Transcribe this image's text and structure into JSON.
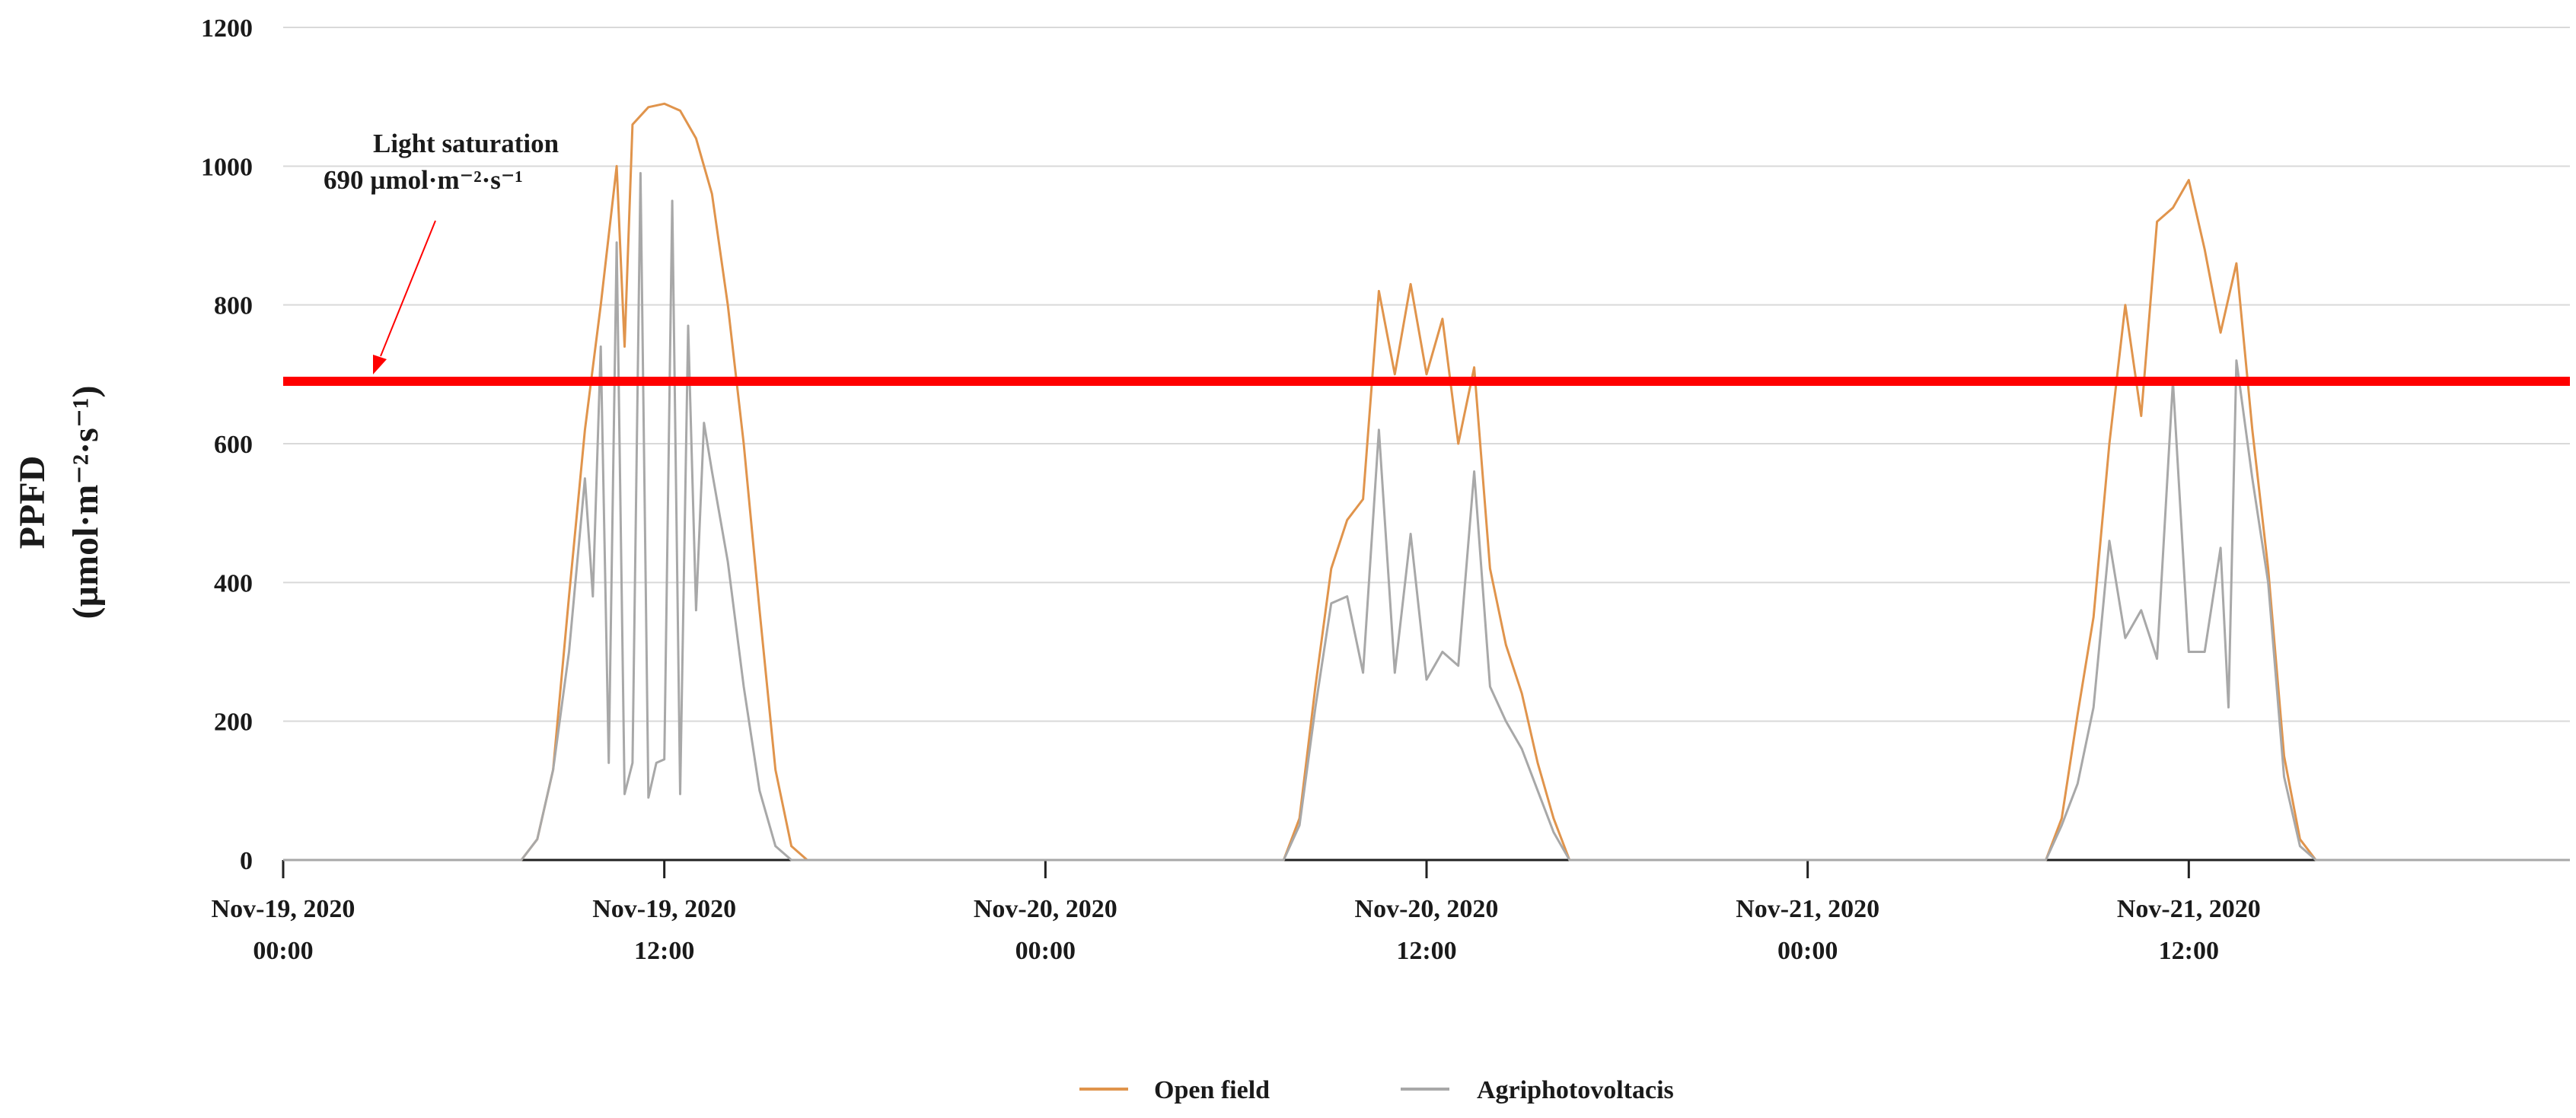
{
  "chart_data": {
    "type": "line",
    "title": "",
    "ylabel_line1": "PPFD",
    "ylabel_line2": "(µmol·m⁻²·s⁻¹)",
    "xlabel": "",
    "ylim": [
      0,
      1200
    ],
    "yticks": [
      0,
      200,
      400,
      600,
      800,
      1000,
      1200
    ],
    "xlim_hours": [
      0,
      72
    ],
    "x_start": "2020-11-19 00:00",
    "x_end": "2020-11-22 00:00",
    "grid": true,
    "legend_position": "bottom",
    "xticks": [
      {
        "t": "2020-11-19 00:00",
        "line1": "Nov-19, 2020",
        "line2": "00:00"
      },
      {
        "t": "2020-11-19 12:00",
        "line1": "Nov-19, 2020",
        "line2": "12:00"
      },
      {
        "t": "2020-11-20 00:00",
        "line1": "Nov-20, 2020",
        "line2": "00:00"
      },
      {
        "t": "2020-11-20 12:00",
        "line1": "Nov-20, 2020",
        "line2": "12:00"
      },
      {
        "t": "2020-11-21 00:00",
        "line1": "Nov-21, 2020",
        "line2": "00:00"
      },
      {
        "t": "2020-11-21 12:00",
        "line1": "Nov-21, 2020",
        "line2": "12:00"
      }
    ],
    "reference_line": {
      "value": 690,
      "color": "#ff0000",
      "label_line1": "Light saturation",
      "label_line2": "690 µmol·m⁻²·s⁻¹"
    },
    "series": [
      {
        "name": "Open field",
        "color": "#e0944c",
        "points": [
          [
            "2020-11-19 00:00",
            0
          ],
          [
            "2020-11-19 07:30",
            0
          ],
          [
            "2020-11-19 08:00",
            30
          ],
          [
            "2020-11-19 08:30",
            130
          ],
          [
            "2020-11-19 09:00",
            380
          ],
          [
            "2020-11-19 09:30",
            620
          ],
          [
            "2020-11-19 10:00",
            800
          ],
          [
            "2020-11-19 10:30",
            1000
          ],
          [
            "2020-11-19 10:45",
            740
          ],
          [
            "2020-11-19 11:00",
            1060
          ],
          [
            "2020-11-19 11:30",
            1085
          ],
          [
            "2020-11-19 12:00",
            1090
          ],
          [
            "2020-11-19 12:30",
            1080
          ],
          [
            "2020-11-19 13:00",
            1040
          ],
          [
            "2020-11-19 13:30",
            960
          ],
          [
            "2020-11-19 14:00",
            800
          ],
          [
            "2020-11-19 14:30",
            600
          ],
          [
            "2020-11-19 15:00",
            360
          ],
          [
            "2020-11-19 15:30",
            130
          ],
          [
            "2020-11-19 16:00",
            20
          ],
          [
            "2020-11-19 16:30",
            0
          ],
          [
            "2020-11-20 07:30",
            0
          ],
          [
            "2020-11-20 08:00",
            60
          ],
          [
            "2020-11-20 08:30",
            250
          ],
          [
            "2020-11-20 09:00",
            420
          ],
          [
            "2020-11-20 09:30",
            490
          ],
          [
            "2020-11-20 10:00",
            520
          ],
          [
            "2020-11-20 10:30",
            820
          ],
          [
            "2020-11-20 11:00",
            700
          ],
          [
            "2020-11-20 11:30",
            830
          ],
          [
            "2020-11-20 12:00",
            700
          ],
          [
            "2020-11-20 12:30",
            780
          ],
          [
            "2020-11-20 13:00",
            600
          ],
          [
            "2020-11-20 13:30",
            710
          ],
          [
            "2020-11-20 14:00",
            420
          ],
          [
            "2020-11-20 14:30",
            310
          ],
          [
            "2020-11-20 15:00",
            240
          ],
          [
            "2020-11-20 15:30",
            140
          ],
          [
            "2020-11-20 16:00",
            60
          ],
          [
            "2020-11-20 16:30",
            0
          ],
          [
            "2020-11-21 07:30",
            0
          ],
          [
            "2020-11-21 08:00",
            60
          ],
          [
            "2020-11-21 08:30",
            210
          ],
          [
            "2020-11-21 09:00",
            350
          ],
          [
            "2020-11-21 09:30",
            600
          ],
          [
            "2020-11-21 10:00",
            800
          ],
          [
            "2020-11-21 10:30",
            640
          ],
          [
            "2020-11-21 11:00",
            920
          ],
          [
            "2020-11-21 11:30",
            940
          ],
          [
            "2020-11-21 12:00",
            980
          ],
          [
            "2020-11-21 12:30",
            880
          ],
          [
            "2020-11-21 13:00",
            760
          ],
          [
            "2020-11-21 13:30",
            860
          ],
          [
            "2020-11-21 14:00",
            620
          ],
          [
            "2020-11-21 14:30",
            420
          ],
          [
            "2020-11-21 15:00",
            150
          ],
          [
            "2020-11-21 15:30",
            30
          ],
          [
            "2020-11-21 16:00",
            0
          ],
          [
            "2020-11-22 00:00",
            0
          ]
        ]
      },
      {
        "name": "Agriphotovoltacis",
        "color": "#a8a8a8",
        "points": [
          [
            "2020-11-19 00:00",
            0
          ],
          [
            "2020-11-19 07:30",
            0
          ],
          [
            "2020-11-19 08:00",
            30
          ],
          [
            "2020-11-19 08:30",
            130
          ],
          [
            "2020-11-19 09:00",
            300
          ],
          [
            "2020-11-19 09:30",
            550
          ],
          [
            "2020-11-19 09:45",
            380
          ],
          [
            "2020-11-19 10:00",
            740
          ],
          [
            "2020-11-19 10:15",
            140
          ],
          [
            "2020-11-19 10:30",
            890
          ],
          [
            "2020-11-19 10:45",
            95
          ],
          [
            "2020-11-19 11:00",
            140
          ],
          [
            "2020-11-19 11:15",
            990
          ],
          [
            "2020-11-19 11:30",
            90
          ],
          [
            "2020-11-19 11:45",
            140
          ],
          [
            "2020-11-19 12:00",
            145
          ],
          [
            "2020-11-19 12:15",
            950
          ],
          [
            "2020-11-19 12:30",
            95
          ],
          [
            "2020-11-19 12:45",
            770
          ],
          [
            "2020-11-19 13:00",
            360
          ],
          [
            "2020-11-19 13:15",
            630
          ],
          [
            "2020-11-19 13:30",
            560
          ],
          [
            "2020-11-19 14:00",
            430
          ],
          [
            "2020-11-19 14:30",
            250
          ],
          [
            "2020-11-19 15:00",
            100
          ],
          [
            "2020-11-19 15:30",
            20
          ],
          [
            "2020-11-19 16:00",
            0
          ],
          [
            "2020-11-20 07:30",
            0
          ],
          [
            "2020-11-20 08:00",
            50
          ],
          [
            "2020-11-20 08:30",
            220
          ],
          [
            "2020-11-20 09:00",
            370
          ],
          [
            "2020-11-20 09:30",
            380
          ],
          [
            "2020-11-20 10:00",
            270
          ],
          [
            "2020-11-20 10:30",
            620
          ],
          [
            "2020-11-20 11:00",
            270
          ],
          [
            "2020-11-20 11:30",
            470
          ],
          [
            "2020-11-20 12:00",
            260
          ],
          [
            "2020-11-20 12:30",
            300
          ],
          [
            "2020-11-20 13:00",
            280
          ],
          [
            "2020-11-20 13:30",
            560
          ],
          [
            "2020-11-20 14:00",
            250
          ],
          [
            "2020-11-20 14:30",
            200
          ],
          [
            "2020-11-20 15:00",
            160
          ],
          [
            "2020-11-20 15:30",
            100
          ],
          [
            "2020-11-20 16:00",
            40
          ],
          [
            "2020-11-20 16:30",
            0
          ],
          [
            "2020-11-21 07:30",
            0
          ],
          [
            "2020-11-21 08:00",
            50
          ],
          [
            "2020-11-21 08:30",
            110
          ],
          [
            "2020-11-21 09:00",
            220
          ],
          [
            "2020-11-21 09:30",
            460
          ],
          [
            "2020-11-21 10:00",
            320
          ],
          [
            "2020-11-21 10:30",
            360
          ],
          [
            "2020-11-21 11:00",
            290
          ],
          [
            "2020-11-21 11:30",
            690
          ],
          [
            "2020-11-21 12:00",
            300
          ],
          [
            "2020-11-21 12:30",
            300
          ],
          [
            "2020-11-21 13:00",
            450
          ],
          [
            "2020-11-21 13:15",
            220
          ],
          [
            "2020-11-21 13:30",
            720
          ],
          [
            "2020-11-21 14:00",
            550
          ],
          [
            "2020-11-21 14:30",
            400
          ],
          [
            "2020-11-21 15:00",
            120
          ],
          [
            "2020-11-21 15:30",
            20
          ],
          [
            "2020-11-21 16:00",
            0
          ],
          [
            "2020-11-22 00:00",
            0
          ]
        ]
      }
    ]
  }
}
